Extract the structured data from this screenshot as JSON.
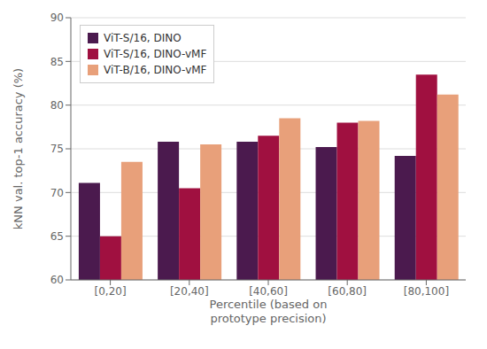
{
  "chart_data": {
    "type": "bar",
    "categories": [
      "[0,20]",
      "[20,40]",
      "[40,60]",
      "[60,80]",
      "[80,100]"
    ],
    "series": [
      {
        "name": "ViT-S/16, DINO",
        "color": "#4B1A4E",
        "values": [
          71.1,
          75.8,
          75.8,
          75.2,
          74.2
        ]
      },
      {
        "name": "ViT-S/16, DINO-vMF",
        "color": "#A01040",
        "values": [
          65.0,
          70.5,
          76.5,
          78.0,
          83.5
        ]
      },
      {
        "name": "ViT-B/16, DINO-vMF",
        "color": "#E8A07A",
        "values": [
          73.5,
          75.5,
          78.5,
          78.2,
          81.2
        ]
      }
    ],
    "xlabel": "Percentile (based on\nprototype precision)",
    "ylabel": "kNN val. top-1 accuracy (%)",
    "ylim": [
      60,
      90
    ],
    "yticks": [
      60,
      65,
      70,
      75,
      80,
      85,
      90
    ],
    "grid": true,
    "legend": "upper left"
  }
}
